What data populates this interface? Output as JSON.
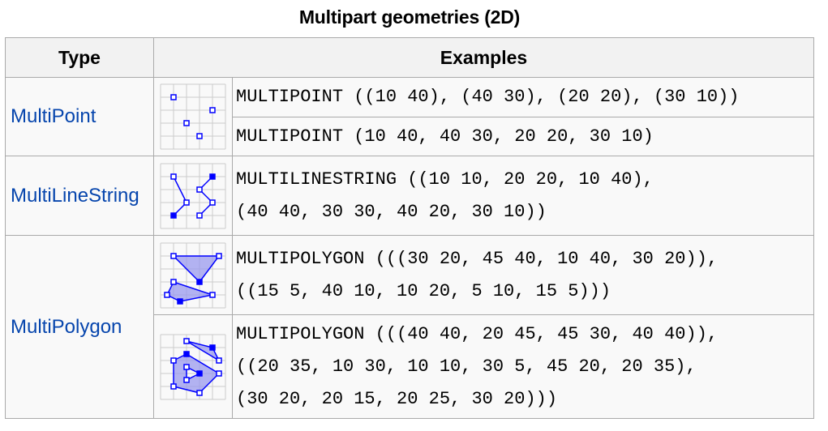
{
  "caption": "Multipart geometries (2D)",
  "headers": {
    "type": "Type",
    "examples": "Examples"
  },
  "rows": [
    {
      "type": "MultiPoint",
      "examples": [
        [
          "MULTIPOINT ((10 40), (40 30), (20 20), (30 10))"
        ],
        [
          "MULTIPOINT (10 40, 40 30, 20 20, 30 10)"
        ]
      ]
    },
    {
      "type": "MultiLineString",
      "examples": [
        [
          "MULTILINESTRING ((10 10, 20 20, 10 40),",
          "(40 40, 30 30, 40 20, 30 10))"
        ]
      ]
    },
    {
      "type": "MultiPolygon",
      "examples": [
        [
          "MULTIPOLYGON (((30 20, 45 40, 10 40, 30 20)),",
          "((15 5, 40 10, 10 20, 5 10, 15 5)))"
        ],
        [
          "MULTIPOLYGON (((40 40, 20 45, 45 30, 40 40)),",
          "((20 35, 10 30, 10 10, 30 5, 45 20, 20 35),",
          "(30 20, 20 15, 20 25, 30 20)))"
        ]
      ]
    }
  ],
  "colors": {
    "link": "#0645ad",
    "shape": "#0000ff",
    "fill": "#9999ee",
    "grid": "#cccccc"
  },
  "icons": [
    "multipoint-diagram-icon",
    "multilinestring-diagram-icon",
    "multipolygon-diagram-icon"
  ]
}
